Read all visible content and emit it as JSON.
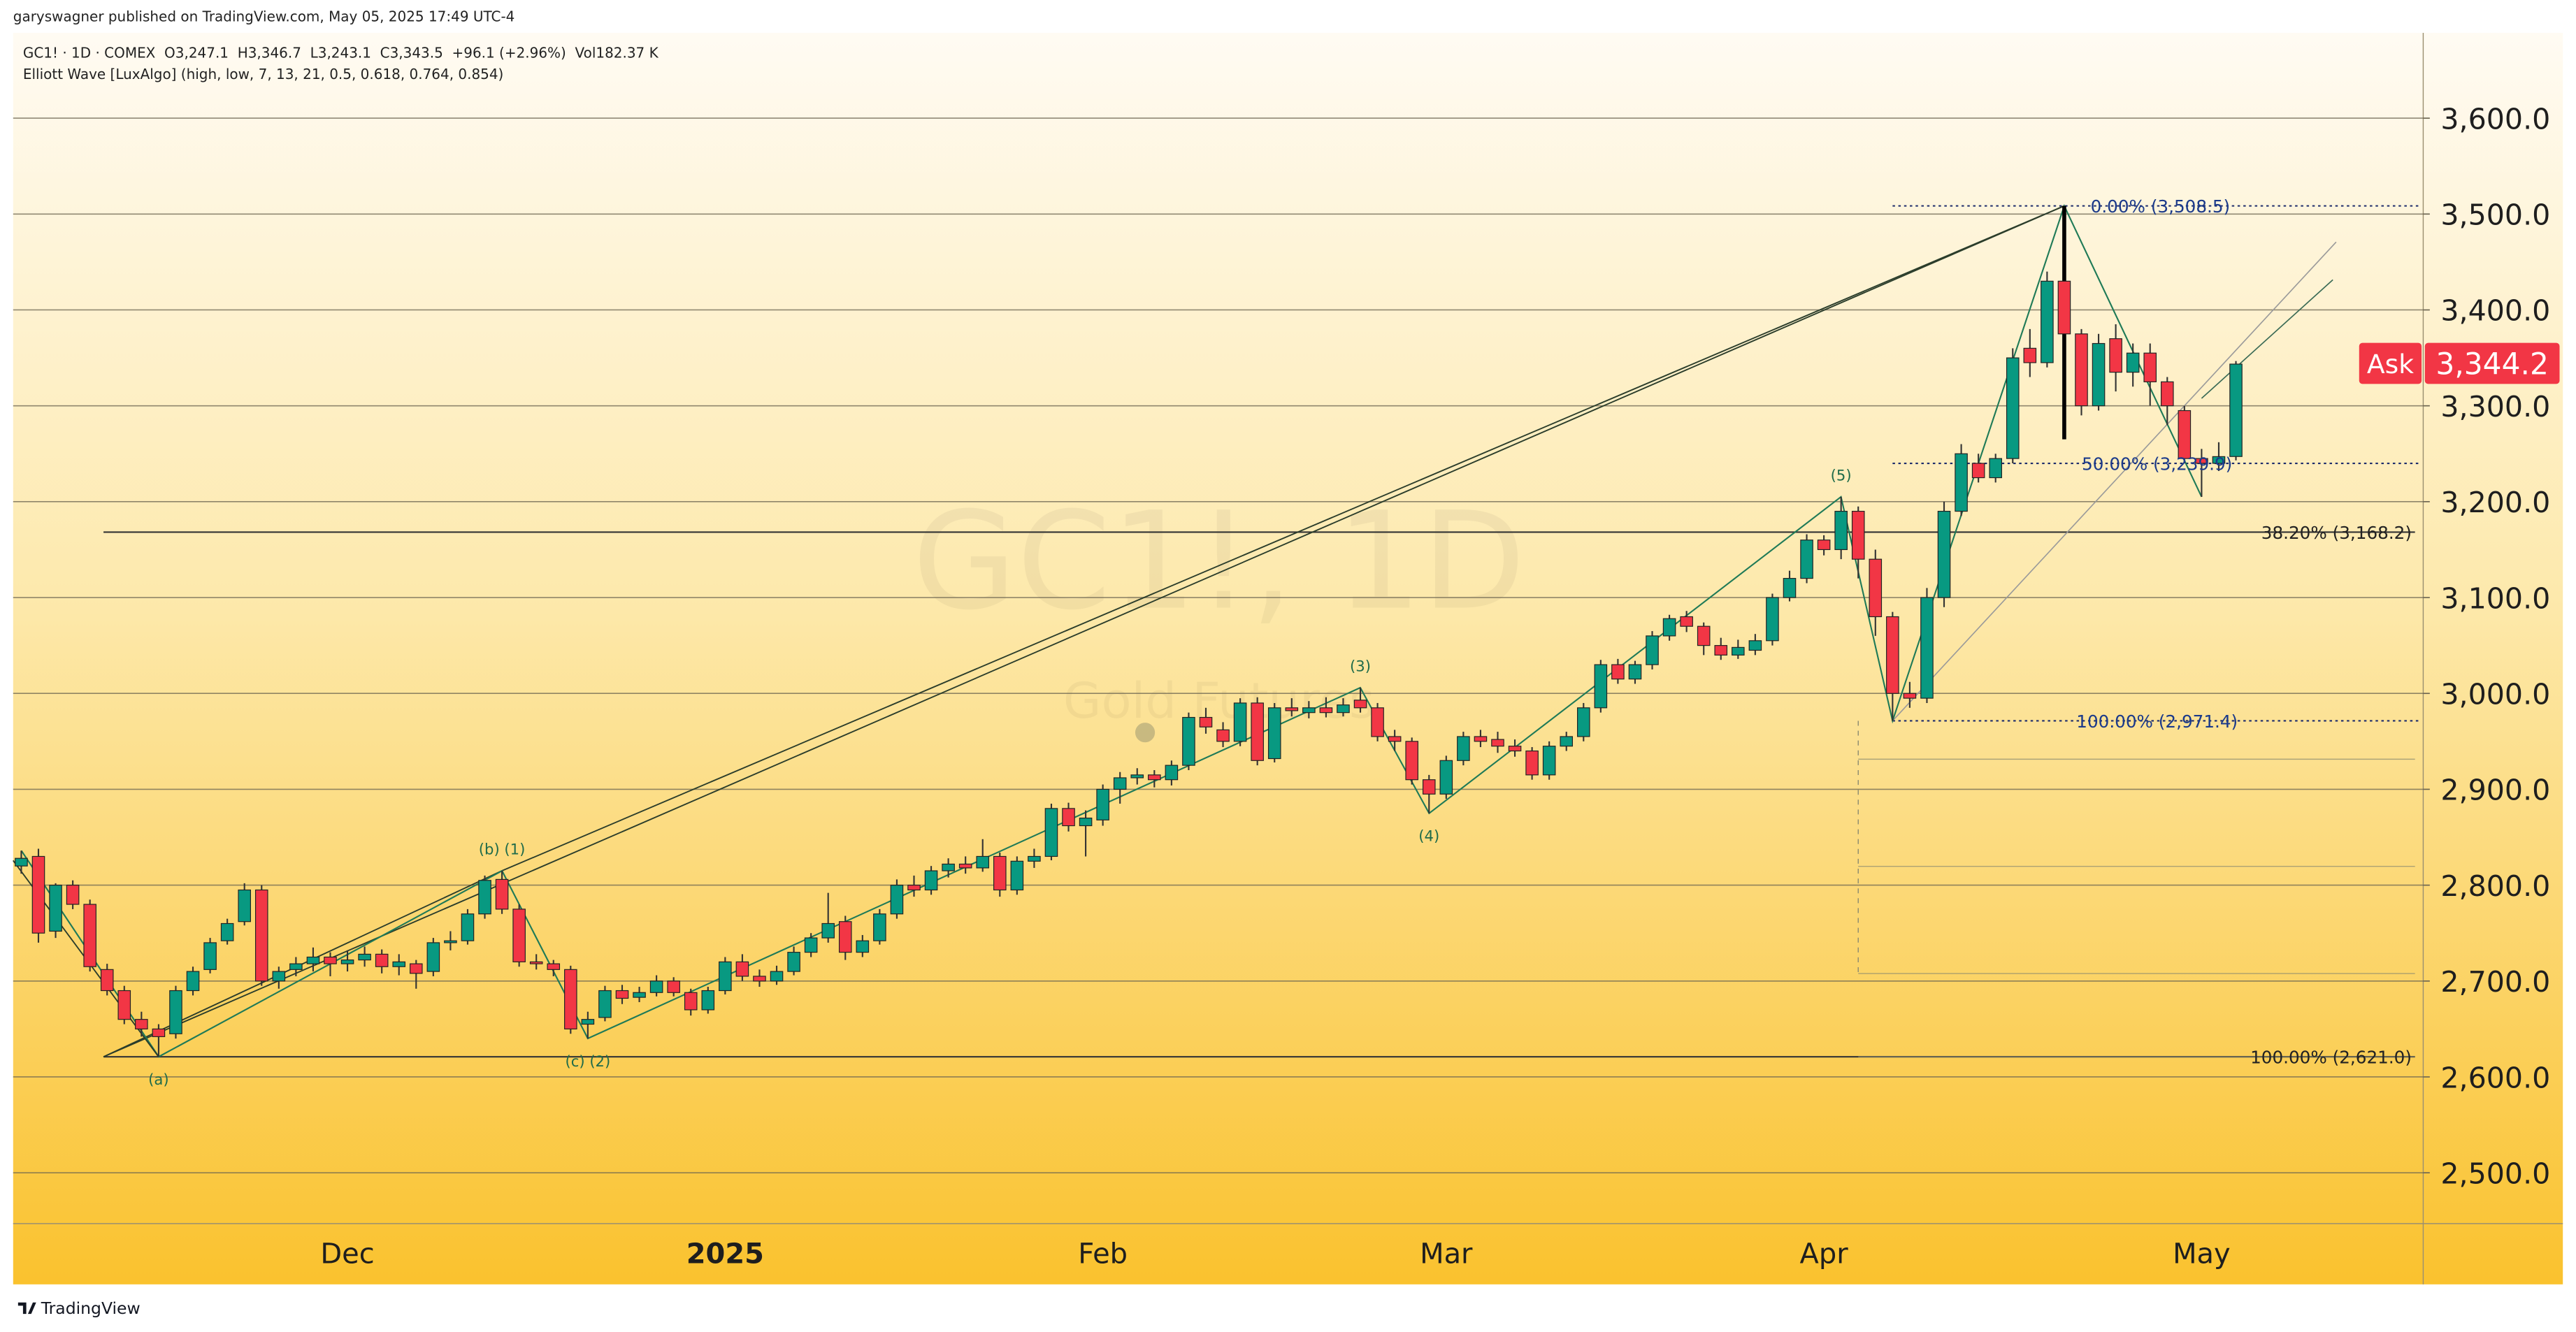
{
  "header": {
    "publisher": "garyswagner published on TradingView.com, May 05, 2025 17:49 UTC-4",
    "symbol_line": "GC1! · 1D · COMEX  O3,247.1  H3,346.7  L3,243.1  C3,343.5  +96.1 (+2.96%)  Vol182.37 K",
    "indicator": "Elliott Wave [LuxAlgo] (high, low, 7, 13, 21, 0.5, 0.618, 0.764, 0.854)"
  },
  "footer": "TradingView",
  "chart_data": {
    "type": "candlestick",
    "watermark": {
      "symbol": "GC1!, 1D",
      "name": "Gold Futures"
    },
    "categories": [
      null,
      null,
      null,
      null,
      null,
      null,
      null,
      null,
      null,
      null,
      null,
      null,
      null,
      null,
      null,
      null,
      null,
      null,
      null,
      "Dec",
      null,
      null,
      null,
      null,
      null,
      null,
      null,
      null,
      null,
      null,
      null,
      null,
      null,
      null,
      null,
      null,
      null,
      null,
      null,
      null,
      null,
      "2025",
      null,
      null,
      null,
      null,
      null,
      null,
      null,
      null,
      null,
      null,
      null,
      null,
      null,
      null,
      null,
      null,
      null,
      null,
      null,
      null,
      null,
      "Feb",
      null,
      null,
      null,
      null,
      null,
      null,
      null,
      null,
      null,
      null,
      null,
      null,
      null,
      null,
      null,
      null,
      null,
      null,
      null,
      "Mar",
      null,
      null,
      null,
      null,
      null,
      null,
      null,
      null,
      null,
      null,
      null,
      null,
      null,
      null,
      null,
      null,
      null,
      null,
      null,
      null,
      null,
      "Apr",
      null,
      null,
      null,
      null,
      null,
      null,
      null,
      null,
      null,
      null,
      null,
      null,
      null,
      null,
      null,
      null,
      null,
      null,
      null,
      null,
      null,
      "May",
      null,
      null
    ],
    "candles": {
      "open": [
        2820,
        2830,
        2752,
        2800,
        2780,
        2712,
        2690,
        2660,
        2650,
        2645,
        2690,
        2712,
        2742,
        2762,
        2795,
        2700,
        2712,
        2718,
        2725,
        2718,
        2722,
        2728,
        2715,
        2718,
        2710,
        2740,
        2742,
        2770,
        2806,
        2775,
        2720,
        2718,
        2712,
        2655,
        2662,
        2690,
        2683,
        2688,
        2700,
        2688,
        2670,
        2690,
        2720,
        2705,
        2700,
        2710,
        2730,
        2745,
        2762,
        2730,
        2742,
        2770,
        2800,
        2795,
        2815,
        2822,
        2818,
        2830,
        2795,
        2825,
        2830,
        2880,
        2862,
        2868,
        2900,
        2912,
        2915,
        2910,
        2925,
        2975,
        2962,
        2950,
        2990,
        2932,
        2985,
        2980,
        2985,
        2980,
        2993,
        2985,
        2955,
        2950,
        2910,
        2895,
        2930,
        2955,
        2952,
        2945,
        2940,
        2915,
        2945,
        2955,
        2985,
        3030,
        3015,
        3030,
        3060,
        3080,
        3070,
        3050,
        3040,
        3045,
        3055,
        3100,
        3120,
        3160,
        3150,
        3190,
        3140,
        3080,
        3000,
        2995,
        3100,
        3190,
        3240,
        3225,
        3245,
        3360,
        3345,
        3430,
        3375,
        3300,
        3370,
        3335,
        3355,
        3325,
        3295,
        3245,
        3240,
        3247.1
      ],
      "high": [
        2836,
        2838,
        2802,
        2805,
        2785,
        2718,
        2695,
        2668,
        2655,
        2695,
        2715,
        2745,
        2765,
        2802,
        2800,
        2715,
        2725,
        2735,
        2730,
        2732,
        2736,
        2733,
        2728,
        2722,
        2745,
        2752,
        2775,
        2810,
        2815,
        2780,
        2728,
        2722,
        2716,
        2668,
        2695,
        2696,
        2694,
        2706,
        2704,
        2692,
        2694,
        2725,
        2728,
        2712,
        2716,
        2736,
        2750,
        2792,
        2768,
        2748,
        2775,
        2806,
        2810,
        2820,
        2828,
        2830,
        2848,
        2834,
        2830,
        2838,
        2885,
        2886,
        2878,
        2905,
        2918,
        2922,
        2920,
        2930,
        2980,
        2985,
        2970,
        2995,
        2996,
        2990,
        2995,
        2992,
        2996,
        2995,
        3006,
        2990,
        2962,
        2954,
        2915,
        2935,
        2960,
        2962,
        2960,
        2952,
        2944,
        2950,
        2960,
        2990,
        3035,
        3036,
        3034,
        3065,
        3082,
        3086,
        3074,
        3058,
        3056,
        3062,
        3104,
        3128,
        3166,
        3165,
        3205,
        3195,
        3150,
        3085,
        3012,
        3110,
        3200,
        3260,
        3250,
        3250,
        3360,
        3380,
        3440,
        3508.5,
        3380,
        3375,
        3385,
        3365,
        3365,
        3330,
        3300,
        3255,
        3262,
        3346.7
      ],
      "low": [
        2812,
        2740,
        2745,
        2775,
        2710,
        2685,
        2655,
        2642,
        2621,
        2640,
        2685,
        2708,
        2738,
        2758,
        2695,
        2692,
        2705,
        2710,
        2705,
        2710,
        2715,
        2708,
        2706,
        2692,
        2705,
        2732,
        2738,
        2765,
        2770,
        2715,
        2712,
        2705,
        2645,
        2640,
        2658,
        2676,
        2678,
        2684,
        2684,
        2664,
        2666,
        2686,
        2700,
        2694,
        2696,
        2706,
        2725,
        2740,
        2722,
        2725,
        2738,
        2765,
        2788,
        2790,
        2808,
        2812,
        2814,
        2788,
        2790,
        2818,
        2826,
        2856,
        2830,
        2862,
        2885,
        2905,
        2902,
        2904,
        2920,
        2958,
        2944,
        2945,
        2925,
        2928,
        2976,
        2974,
        2975,
        2976,
        2980,
        2950,
        2940,
        2905,
        2875,
        2890,
        2925,
        2944,
        2938,
        2934,
        2910,
        2910,
        2940,
        2950,
        2980,
        3010,
        3010,
        3025,
        3055,
        3064,
        3040,
        3035,
        3036,
        3040,
        3050,
        3096,
        3115,
        3144,
        3140,
        3120,
        3060,
        2971.4,
        2985,
        2990,
        3090,
        3185,
        3220,
        3220,
        3240,
        3330,
        3340,
        3265,
        3290,
        3295,
        3315,
        3320,
        3300,
        3280,
        3240,
        3205,
        3232,
        3243.1
      ],
      "close": [
        2828,
        2750,
        2800,
        2780,
        2715,
        2690,
        2660,
        2650,
        2642,
        2690,
        2710,
        2740,
        2760,
        2795,
        2700,
        2710,
        2718,
        2725,
        2718,
        2722,
        2728,
        2715,
        2720,
        2708,
        2740,
        2742,
        2770,
        2805,
        2775,
        2720,
        2718,
        2712,
        2650,
        2660,
        2690,
        2682,
        2688,
        2700,
        2688,
        2670,
        2690,
        2720,
        2705,
        2700,
        2710,
        2730,
        2745,
        2760,
        2730,
        2742,
        2770,
        2800,
        2795,
        2815,
        2822,
        2818,
        2830,
        2795,
        2825,
        2830,
        2880,
        2862,
        2870,
        2900,
        2912,
        2915,
        2910,
        2925,
        2975,
        2965,
        2950,
        2990,
        2930,
        2985,
        2982,
        2985,
        2980,
        2988,
        2985,
        2955,
        2950,
        2910,
        2895,
        2930,
        2955,
        2950,
        2945,
        2940,
        2915,
        2945,
        2955,
        2985,
        3030,
        3015,
        3030,
        3060,
        3078,
        3070,
        3050,
        3040,
        3048,
        3055,
        3100,
        3120,
        3160,
        3150,
        3190,
        3140,
        3080,
        3000,
        2995,
        3100,
        3190,
        3250,
        3225,
        3245,
        3350,
        3345,
        3430,
        3375,
        3300,
        3365,
        3335,
        3355,
        3325,
        3300,
        3245,
        3240,
        3247,
        3343.5
      ]
    },
    "up_color": "#089981",
    "down_color": "#f23645",
    "ylim": [
      2447,
      3689
    ],
    "yticks": [
      {
        "value": 2500,
        "label": "2,500.0"
      },
      {
        "value": 2600,
        "label": "2,600.0"
      },
      {
        "value": 2700,
        "label": "2,700.0"
      },
      {
        "value": 2800,
        "label": "2,800.0"
      },
      {
        "value": 2900,
        "label": "2,900.0"
      },
      {
        "value": 3000,
        "label": "3,000.0"
      },
      {
        "value": 3100,
        "label": "3,100.0"
      },
      {
        "value": 3200,
        "label": "3,200.0"
      },
      {
        "value": 3300,
        "label": "3,300.0"
      },
      {
        "value": 3400,
        "label": "3,400.0"
      },
      {
        "value": 3500,
        "label": "3,500.0"
      },
      {
        "value": 3600,
        "label": "3,600.0"
      }
    ],
    "grid": true,
    "fib_levels": [
      {
        "value": 3508.5,
        "label": "0.00% (3,508.5)"
      },
      {
        "value": 3239.9,
        "label": "50.00% (3,239.9)"
      },
      {
        "value": 3168.2,
        "label": "38.20% (3,168.2)"
      },
      {
        "value": 2971.4,
        "label": "100.00% (2,971.4)"
      },
      {
        "value": 2621.0,
        "label": "100.00% (2,621.0)"
      }
    ],
    "wave_labels": [
      "(a)",
      "(b) (1)",
      "(c) (2)",
      "(3)",
      "(4)",
      "(5)"
    ],
    "ask": {
      "label": "Ask",
      "price": {
        "value": 3344.2,
        "label": "3,344.2"
      }
    }
  }
}
